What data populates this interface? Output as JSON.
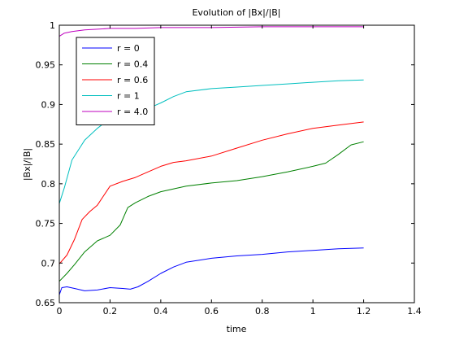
{
  "chart_data": {
    "type": "line",
    "title": "Evolution of |Bx|/|B|",
    "xlabel": "time",
    "ylabel": "|Bx|/|B|",
    "xlim": [
      0,
      1.4
    ],
    "ylim": [
      0.65,
      1.0
    ],
    "xticks": [
      0,
      0.2,
      0.4,
      0.6,
      0.8,
      1.0,
      1.2,
      1.4
    ],
    "xtick_labels": [
      "0",
      "0.2",
      "0.4",
      "0.6",
      "0.8",
      "1",
      "1.2",
      "1.4"
    ],
    "yticks": [
      0.65,
      0.7,
      0.75,
      0.8,
      0.85,
      0.9,
      0.95,
      1.0
    ],
    "ytick_labels": [
      "0.65",
      "0.7",
      "0.75",
      "0.8",
      "0.85",
      "0.9",
      "0.95",
      "1"
    ],
    "grid": false,
    "legend_position": "top-left",
    "series": [
      {
        "name": "r = 0",
        "color": "#0000ff",
        "x": [
          0,
          0.01,
          0.03,
          0.06,
          0.1,
          0.15,
          0.2,
          0.25,
          0.28,
          0.31,
          0.35,
          0.4,
          0.45,
          0.5,
          0.6,
          0.7,
          0.8,
          0.9,
          1.0,
          1.1,
          1.2
        ],
        "y": [
          0.66,
          0.669,
          0.67,
          0.668,
          0.665,
          0.666,
          0.669,
          0.668,
          0.667,
          0.67,
          0.677,
          0.687,
          0.695,
          0.701,
          0.706,
          0.709,
          0.711,
          0.714,
          0.716,
          0.718,
          0.719
        ]
      },
      {
        "name": "r = 0.4",
        "color": "#008000",
        "x": [
          0,
          0.03,
          0.06,
          0.1,
          0.15,
          0.2,
          0.24,
          0.27,
          0.3,
          0.35,
          0.4,
          0.5,
          0.6,
          0.7,
          0.8,
          0.9,
          1.0,
          1.05,
          1.1,
          1.15,
          1.2
        ],
        "y": [
          0.677,
          0.687,
          0.698,
          0.714,
          0.728,
          0.735,
          0.748,
          0.77,
          0.776,
          0.784,
          0.79,
          0.797,
          0.801,
          0.804,
          0.809,
          0.815,
          0.822,
          0.826,
          0.837,
          0.849,
          0.853
        ]
      },
      {
        "name": "r = 0.6",
        "color": "#ff0000",
        "x": [
          0,
          0.03,
          0.06,
          0.09,
          0.12,
          0.15,
          0.2,
          0.25,
          0.3,
          0.35,
          0.4,
          0.45,
          0.5,
          0.6,
          0.7,
          0.8,
          0.9,
          1.0,
          1.1,
          1.2
        ],
        "y": [
          0.699,
          0.71,
          0.73,
          0.755,
          0.765,
          0.773,
          0.797,
          0.803,
          0.808,
          0.815,
          0.822,
          0.827,
          0.829,
          0.835,
          0.845,
          0.855,
          0.863,
          0.87,
          0.874,
          0.878
        ]
      },
      {
        "name": "r = 1",
        "color": "#00bfbf",
        "x": [
          0,
          0.02,
          0.05,
          0.08,
          0.1,
          0.15,
          0.2,
          0.25,
          0.3,
          0.35,
          0.4,
          0.45,
          0.5,
          0.6,
          0.7,
          0.8,
          0.9,
          1.0,
          1.1,
          1.2
        ],
        "y": [
          0.775,
          0.795,
          0.83,
          0.845,
          0.855,
          0.87,
          0.882,
          0.888,
          0.893,
          0.895,
          0.902,
          0.91,
          0.916,
          0.92,
          0.922,
          0.924,
          0.926,
          0.928,
          0.93,
          0.931
        ]
      },
      {
        "name": "r = 4.0",
        "color": "#bf00bf",
        "x": [
          0,
          0.02,
          0.05,
          0.1,
          0.15,
          0.2,
          0.3,
          0.4,
          0.5,
          0.6,
          0.8,
          1.0,
          1.2
        ],
        "y": [
          0.986,
          0.99,
          0.992,
          0.994,
          0.995,
          0.996,
          0.996,
          0.997,
          0.997,
          0.997,
          0.998,
          0.998,
          0.998
        ]
      }
    ]
  }
}
